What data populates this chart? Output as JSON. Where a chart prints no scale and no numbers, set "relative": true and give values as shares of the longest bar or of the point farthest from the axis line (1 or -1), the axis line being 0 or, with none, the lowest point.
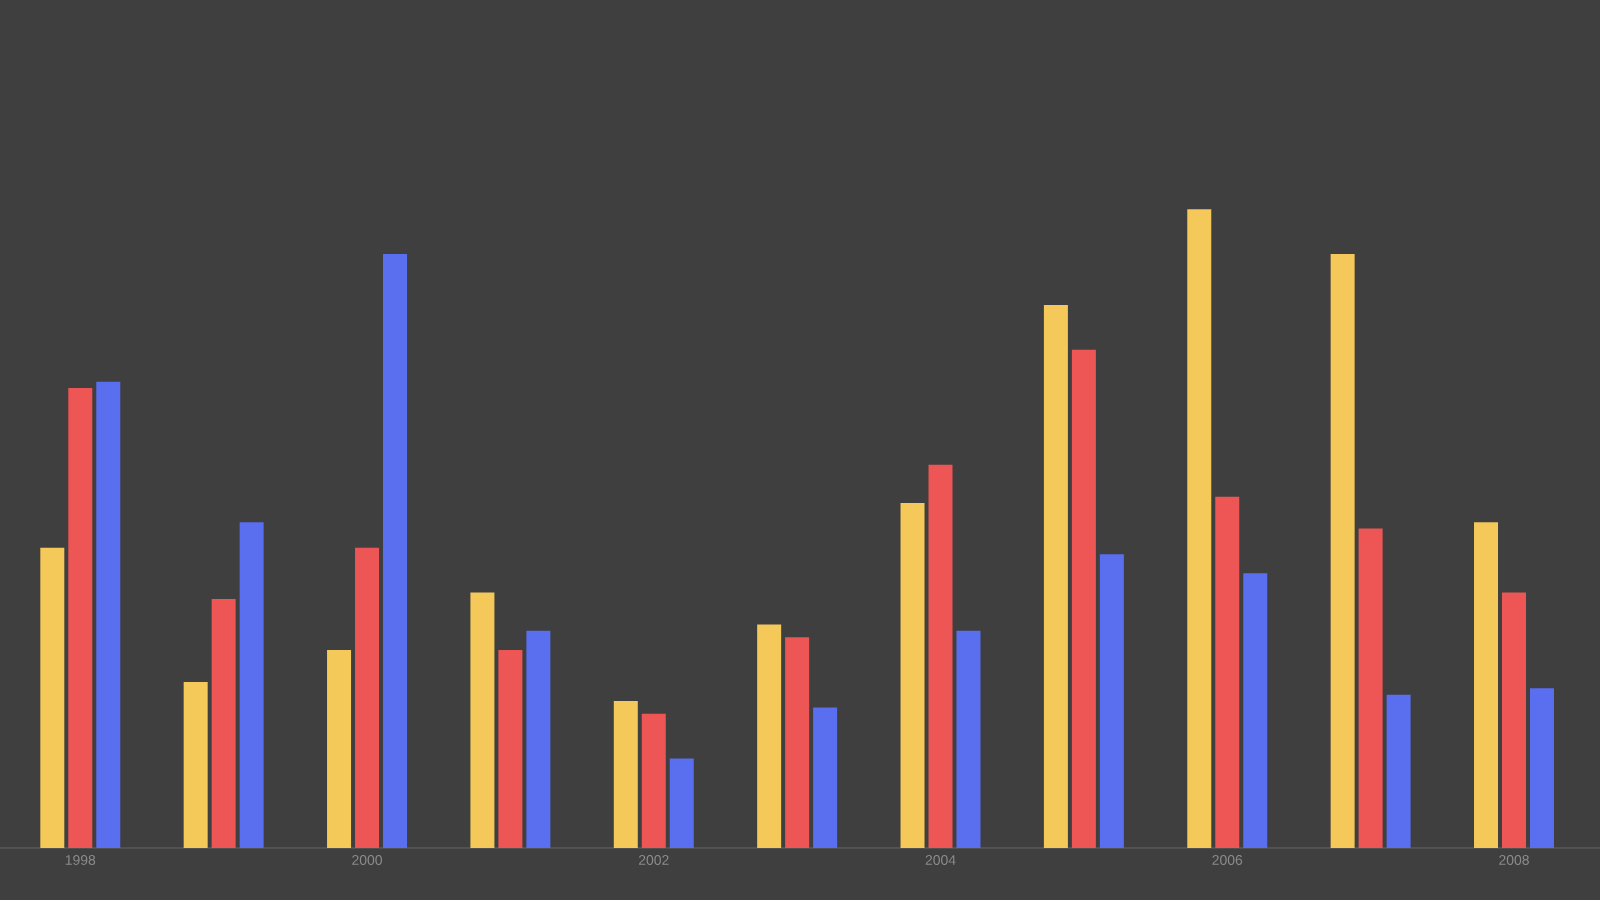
{
  "chart_data": {
    "type": "bar",
    "relative": true,
    "categories": [
      "1998",
      null,
      "2000",
      null,
      "2002",
      null,
      "2004",
      null,
      "2006",
      null,
      "2008"
    ],
    "series": [
      {
        "color": "#f5c85a",
        "values": [
          0.47,
          0.26,
          0.31,
          0.4,
          0.23,
          0.35,
          0.54,
          0.85,
          1.0,
          0.93,
          0.51
        ]
      },
      {
        "color": "#ee5555",
        "values": [
          0.72,
          0.39,
          0.47,
          0.31,
          0.21,
          0.33,
          0.6,
          0.78,
          0.55,
          0.5,
          0.4
        ]
      },
      {
        "color": "#5a6ef0",
        "values": [
          0.73,
          0.51,
          0.93,
          0.34,
          0.14,
          0.22,
          0.34,
          0.46,
          0.43,
          0.24,
          0.25
        ]
      }
    ]
  }
}
